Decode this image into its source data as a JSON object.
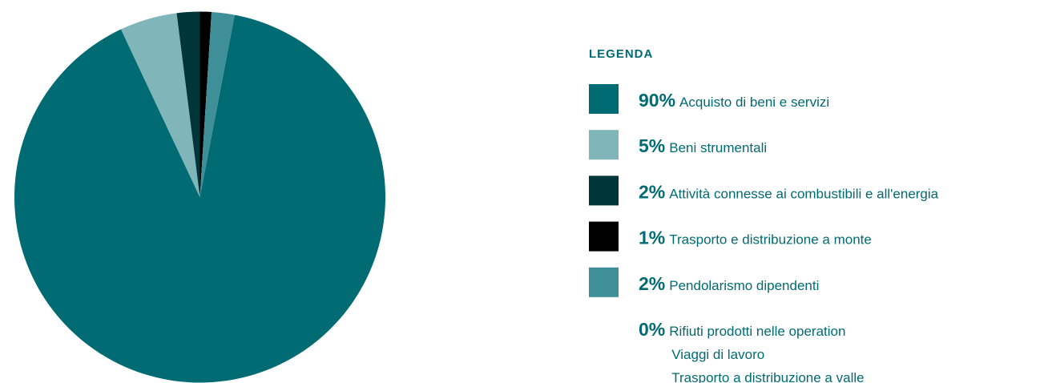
{
  "chart_data": {
    "type": "pie",
    "legend_title": "LEGENDA",
    "categories": [
      "Acquisto di beni e servizi",
      "Beni strumentali",
      "Attività connesse ai combustibili e all'energia",
      "Trasporto e distribuzione a monte",
      "Pendolarismo dipendenti",
      [
        "Rifiuti prodotti nelle operation",
        "Viaggi di lavoro",
        "Trasporto a distribuzione a valle"
      ]
    ],
    "values": [
      90,
      5,
      2,
      1,
      2,
      0
    ],
    "value_labels": [
      "90%",
      "5%",
      "2%",
      "1%",
      "2%",
      "0%"
    ],
    "colors": [
      "#006b73",
      "#80b5ba",
      "#00363a",
      "#000000",
      "#3f8f98",
      null
    ],
    "legend": "right"
  }
}
